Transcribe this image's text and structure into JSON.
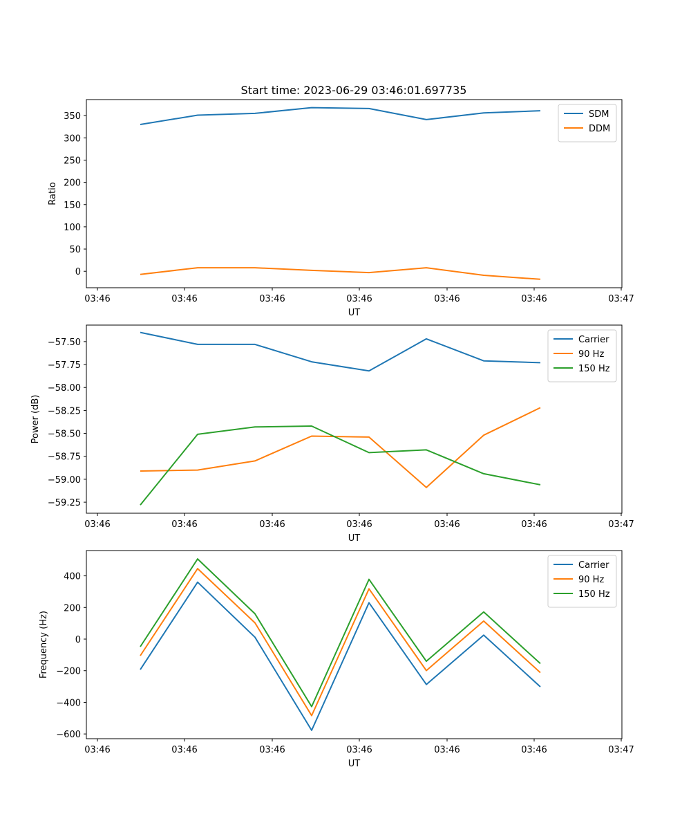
{
  "title": "Start time: 2023-06-29 03:46:01.697735",
  "colors": {
    "c0": "#1f77b4",
    "c1": "#ff7f0e",
    "c2": "#2ca02c"
  },
  "chart_data": [
    {
      "type": "line",
      "title": "Start time: 2023-06-29 03:46:01.697735",
      "xlabel": "UT",
      "ylabel": "Ratio",
      "xtick_labels": [
        "03:46",
        "03:46",
        "03:46",
        "03:46",
        "03:46",
        "03:46",
        "03:47"
      ],
      "yticks": [
        0,
        50,
        100,
        150,
        200,
        250,
        300,
        350
      ],
      "ytick_labels": [
        "0",
        "50",
        "100",
        "150",
        "200",
        "250",
        "300",
        "350"
      ],
      "ylim": [
        -37,
        386
      ],
      "legend_position": "upper right",
      "series": [
        {
          "name": "SDM",
          "color": "#1f77b4",
          "values": [
            330,
            351,
            355,
            368,
            366,
            341,
            356,
            361
          ]
        },
        {
          "name": "DDM",
          "color": "#ff7f0e",
          "values": [
            -7,
            8,
            8,
            2,
            -3,
            8,
            -9,
            -18
          ]
        }
      ]
    },
    {
      "type": "line",
      "xlabel": "UT",
      "ylabel": "Power (dB)",
      "xtick_labels": [
        "03:46",
        "03:46",
        "03:46",
        "03:46",
        "03:46",
        "03:46",
        "03:47"
      ],
      "yticks": [
        -57.5,
        -57.75,
        -58.0,
        -58.25,
        -58.5,
        -58.75,
        -59.0,
        -59.25
      ],
      "ytick_labels": [
        "−57.50",
        "−57.75",
        "−58.00",
        "−58.25",
        "−58.50",
        "−58.75",
        "−59.00",
        "−59.25"
      ],
      "ylim": [
        -59.37,
        -57.32
      ],
      "legend_position": "upper right",
      "series": [
        {
          "name": "Carrier",
          "color": "#1f77b4",
          "values": [
            -57.4,
            -57.53,
            -57.53,
            -57.72,
            -57.82,
            -57.47,
            -57.71,
            -57.73
          ]
        },
        {
          "name": "90 Hz",
          "color": "#ff7f0e",
          "values": [
            -58.91,
            -58.9,
            -58.8,
            -58.53,
            -58.54,
            -59.09,
            -58.52,
            -58.22
          ]
        },
        {
          "name": "150 Hz",
          "color": "#2ca02c",
          "values": [
            -59.28,
            -58.51,
            -58.43,
            -58.42,
            -58.71,
            -58.68,
            -58.94,
            -59.06
          ]
        }
      ]
    },
    {
      "type": "line",
      "xlabel": "UT",
      "ylabel": "Frequency (Hz)",
      "xtick_labels": [
        "03:46",
        "03:46",
        "03:46",
        "03:46",
        "03:46",
        "03:46",
        "03:47"
      ],
      "yticks": [
        -600,
        -400,
        -200,
        0,
        200,
        400
      ],
      "ytick_labels": [
        "−600",
        "−400",
        "−200",
        "0",
        "200",
        "400"
      ],
      "ylim": [
        -630,
        560
      ],
      "legend_position": "upper right",
      "series": [
        {
          "name": "Carrier",
          "color": "#1f77b4",
          "values": [
            -193,
            360,
            12,
            -577,
            230,
            -287,
            25,
            -302
          ]
        },
        {
          "name": "90 Hz",
          "color": "#ff7f0e",
          "values": [
            -105,
            446,
            103,
            -484,
            318,
            -199,
            114,
            -212
          ]
        },
        {
          "name": "150 Hz",
          "color": "#2ca02c",
          "values": [
            -48,
            507,
            160,
            -427,
            378,
            -140,
            172,
            -155
          ]
        }
      ]
    }
  ]
}
